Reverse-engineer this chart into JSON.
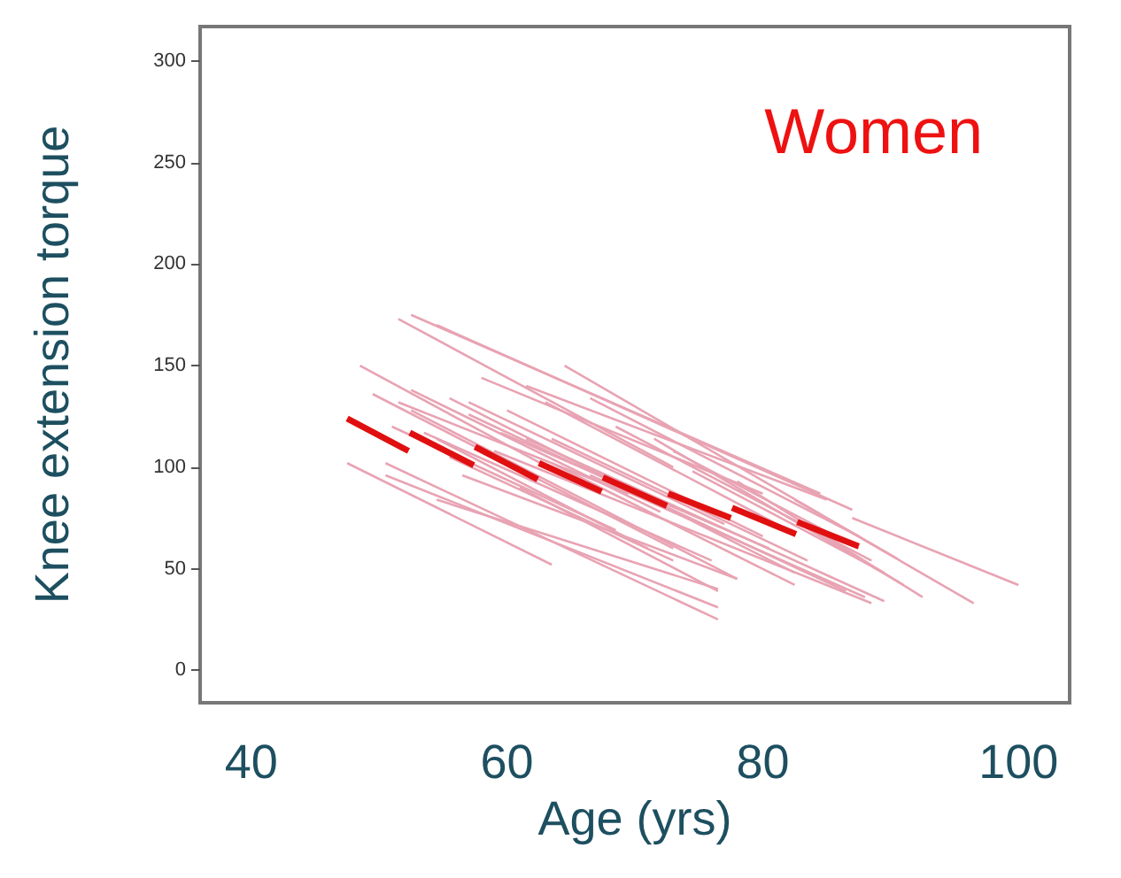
{
  "chart_data": {
    "type": "line",
    "xlabel": "Age (yrs)",
    "ylabel": "Knee extension torque",
    "annotations": [
      "Women"
    ],
    "marker": "none",
    "xlim": [
      36,
      104
    ],
    "xticks": [
      40,
      60,
      80,
      100
    ],
    "ylim": [
      -16,
      317
    ],
    "yticks": [
      0,
      50,
      100,
      150,
      200,
      250,
      300
    ],
    "series": [
      {
        "color": "#e8a3b3",
        "x": [
          51.5,
          73
        ],
        "values": [
          173,
          100
        ]
      },
      {
        "color": "#e8a3b3",
        "x": [
          52.5,
          84.5
        ],
        "values": [
          175,
          87
        ]
      },
      {
        "color": "#e8a3b3",
        "x": [
          54.5,
          87
        ],
        "values": [
          170,
          79
        ]
      },
      {
        "color": "#e8a3b3",
        "x": [
          48.5,
          63.5
        ],
        "values": [
          150,
          99
        ]
      },
      {
        "color": "#e8a3b3",
        "x": [
          64.5,
          90.5
        ],
        "values": [
          150,
          55
        ]
      },
      {
        "color": "#e8a3b3",
        "x": [
          47.5,
          63.5
        ],
        "values": [
          102,
          52
        ]
      },
      {
        "color": "#e8a3b3",
        "x": [
          50.5,
          76.5
        ],
        "values": [
          102,
          25
        ]
      },
      {
        "color": "#e8a3b3",
        "x": [
          50.5,
          76.5
        ],
        "values": [
          96,
          31
        ]
      },
      {
        "color": "#e8a3b3",
        "x": [
          54.5,
          76.5
        ],
        "values": [
          84,
          40
        ]
      },
      {
        "color": "#e8a3b3",
        "x": [
          49.5,
          73
        ],
        "values": [
          136,
          60
        ]
      },
      {
        "color": "#e8a3b3",
        "x": [
          52.5,
          78
        ],
        "values": [
          128,
          45
        ]
      },
      {
        "color": "#e8a3b3",
        "x": [
          55.5,
          82.5
        ],
        "values": [
          134,
          48
        ]
      },
      {
        "color": "#e8a3b3",
        "x": [
          57,
          86.5
        ],
        "values": [
          126,
          39
        ]
      },
      {
        "color": "#e8a3b3",
        "x": [
          87,
          100
        ],
        "values": [
          75,
          42
        ]
      },
      {
        "color": "#e8a3b3",
        "x": [
          82.5,
          96.5
        ],
        "values": [
          84,
          33
        ]
      },
      {
        "color": "#e8a3b3",
        "x": [
          78,
          92.5
        ],
        "values": [
          93,
          36
        ]
      },
      {
        "color": "#e8a3b3",
        "x": [
          61.5,
          89.5
        ],
        "values": [
          114,
          34
        ]
      },
      {
        "color": "#e8a3b3",
        "x": [
          59,
          88.5
        ],
        "values": [
          108,
          33
        ]
      },
      {
        "color": "#e8a3b3",
        "x": [
          66.5,
          87.5
        ],
        "values": [
          134,
          66
        ]
      },
      {
        "color": "#e8a3b3",
        "x": [
          61.5,
          85
        ],
        "values": [
          140,
          84
        ]
      },
      {
        "color": "#e8a3b3",
        "x": [
          58,
          80
        ],
        "values": [
          144,
          87
        ]
      },
      {
        "color": "#e8a3b3",
        "x": [
          63.5,
          83.5
        ],
        "values": [
          114,
          54
        ]
      },
      {
        "color": "#e8a3b3",
        "x": [
          53.5,
          76
        ],
        "values": [
          117,
          54
        ]
      },
      {
        "color": "#e8a3b3",
        "x": [
          56.5,
          78
        ],
        "values": [
          96,
          45
        ]
      },
      {
        "color": "#e8a3b3",
        "x": [
          52.5,
          72
        ],
        "values": [
          138,
          78
        ]
      },
      {
        "color": "#e8a3b3",
        "x": [
          59.5,
          80.5
        ],
        "values": [
          117,
          60
        ]
      },
      {
        "color": "#e8a3b3",
        "x": [
          68.5,
          88.5
        ],
        "values": [
          120,
          54
        ]
      },
      {
        "color": "#e8a3b3",
        "x": [
          71.5,
          91
        ],
        "values": [
          114,
          42
        ]
      },
      {
        "color": "#e8a3b3",
        "x": [
          51,
          68.5
        ],
        "values": [
          120,
          69
        ]
      },
      {
        "color": "#e8a3b3",
        "x": [
          54.5,
          71
        ],
        "values": [
          114,
          60
        ]
      },
      {
        "color": "#e8a3b3",
        "x": [
          55.5,
          73
        ],
        "values": [
          105,
          54
        ]
      },
      {
        "color": "#e8a3b3",
        "x": [
          61,
          76.5
        ],
        "values": [
          90,
          39
        ]
      },
      {
        "color": "#e8a3b3",
        "x": [
          63.5,
          82.5
        ],
        "values": [
          102,
          42
        ]
      },
      {
        "color": "#e8a3b3",
        "x": [
          66.5,
          88
        ],
        "values": [
          96,
          36
        ]
      },
      {
        "color": "#e8a3b3",
        "x": [
          74.5,
          89.5
        ],
        "values": [
          98,
          48
        ]
      },
      {
        "color": "#e8a3b3",
        "x": [
          57,
          77
        ],
        "values": [
          132,
          72
        ]
      },
      {
        "color": "#e8a3b3",
        "x": [
          60,
          80
        ],
        "values": [
          128,
          66
        ]
      },
      {
        "color": "#e8a3b3",
        "x": [
          63,
          82
        ],
        "values": [
          132,
          69
        ]
      },
      {
        "color": "#e8a3b3",
        "x": [
          51.5,
          69.5
        ],
        "values": [
          132,
          87
        ]
      },
      {
        "color": "#e8a3b3",
        "x": [
          73,
          87.5
        ],
        "values": [
          108,
          60
        ]
      },
      {
        "color": "#e01010",
        "x": [
          47.5,
          52.3,
          52.35,
          52.4,
          57.4,
          57.45,
          57.5,
          62.4,
          62.45,
          62.5,
          67.4,
          67.45,
          67.5,
          72.5,
          72.55,
          72.6,
          77.5,
          77.55,
          77.6,
          82.6,
          82.65,
          82.7,
          87.5
        ],
        "values": [
          124,
          108,
          null,
          117,
          101,
          null,
          110,
          94,
          null,
          102,
          88,
          null,
          95,
          81,
          null,
          87,
          75,
          null,
          80,
          67,
          null,
          73,
          61
        ]
      }
    ]
  }
}
